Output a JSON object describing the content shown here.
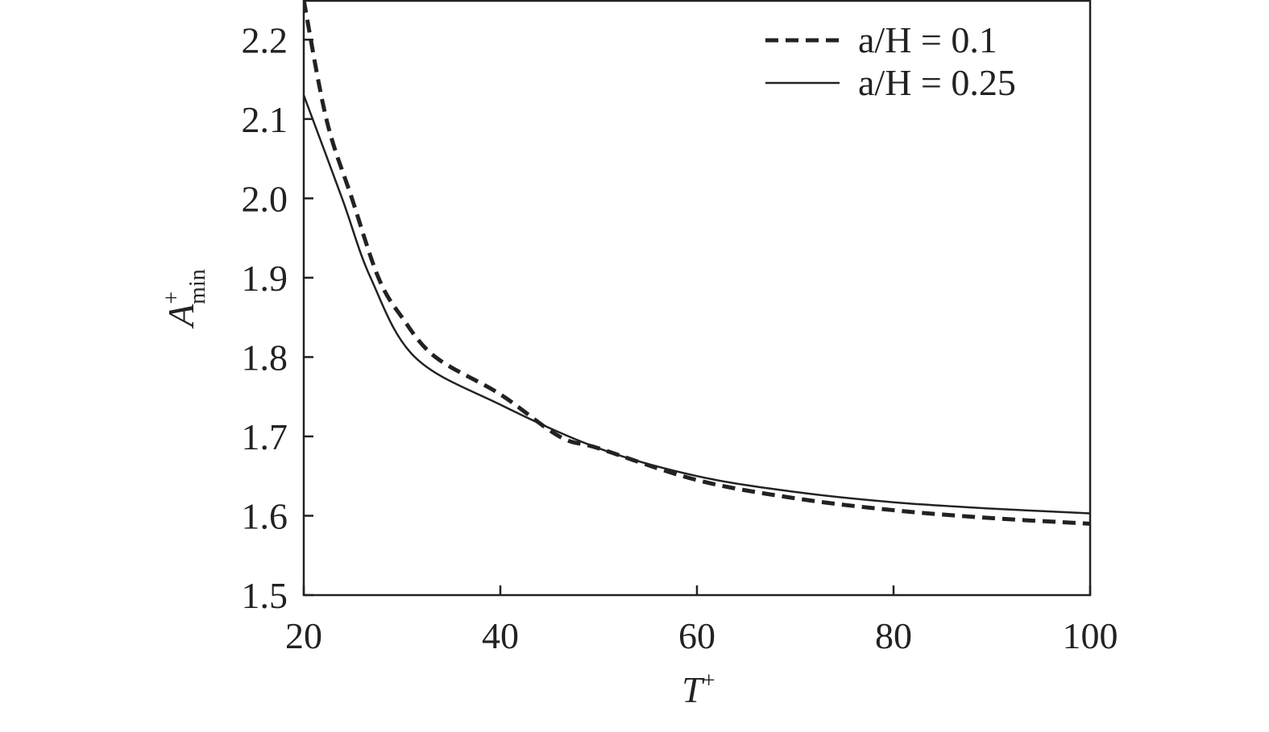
{
  "chart_data": {
    "type": "line",
    "xlabel": {
      "base": "T",
      "sup": "+"
    },
    "ylabel": {
      "base": "A",
      "sup": "+",
      "sub": "min"
    },
    "xlim": [
      20,
      100
    ],
    "xticks": [
      20,
      40,
      60,
      80,
      100
    ],
    "ylim": [
      1.5,
      2.25
    ],
    "yticks": [
      1.5,
      1.6,
      1.7,
      1.8,
      1.9,
      {
        "value": 2,
        "label": "2.0"
      },
      2.1,
      2.2
    ],
    "legend": "upper right",
    "series": [
      {
        "name": "a/H = 0.1",
        "color": "#222222",
        "dash": true,
        "x": [
          20,
          22.3,
          24.9,
          27.6,
          30,
          33.4,
          40,
          46,
          50,
          60,
          70,
          80,
          90,
          100
        ],
        "values": [
          2.25,
          2.1,
          2.0,
          1.9,
          1.85,
          1.8,
          1.753,
          1.7,
          1.685,
          1.645,
          1.622,
          1.607,
          1.597,
          1.59
        ]
      },
      {
        "name": "a/H = 0.25",
        "color": "#222222",
        "dash": false,
        "x": [
          20,
          23.9,
          26.8,
          31.3,
          40,
          50,
          60,
          70,
          80,
          90,
          100
        ],
        "values": [
          2.13,
          2.0,
          1.9,
          1.8,
          1.74,
          1.685,
          1.65,
          1.63,
          1.617,
          1.609,
          1.603
        ]
      }
    ]
  }
}
